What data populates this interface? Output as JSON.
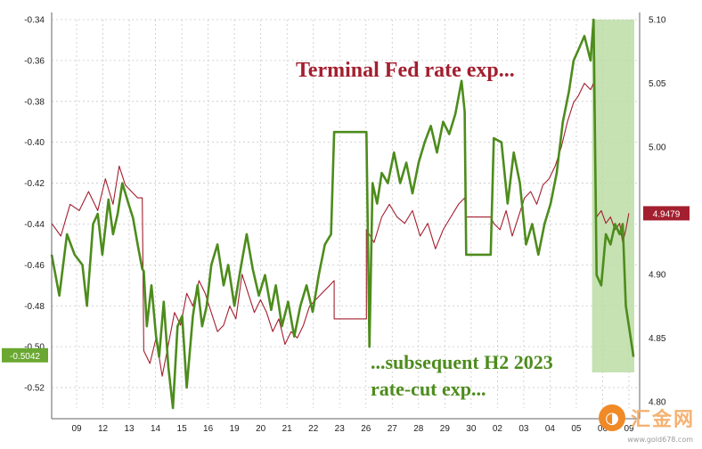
{
  "chart_data": {
    "type": "line",
    "title": "",
    "xlabel": "",
    "ylabel": "",
    "x_tick_labels": [
      "09",
      "12",
      "13",
      "14",
      "15",
      "16",
      "19",
      "20",
      "21",
      "22",
      "23",
      "26",
      "27",
      "28",
      "29",
      "30",
      "02",
      "03",
      "04",
      "05",
      "06",
      "09"
    ],
    "ylim_left": [
      -0.53,
      -0.34
    ],
    "ylim_right": [
      4.795,
      5.1
    ],
    "left_ticks": [
      -0.34,
      -0.36,
      -0.38,
      -0.4,
      -0.42,
      -0.44,
      -0.46,
      -0.48,
      -0.5,
      -0.52
    ],
    "right_ticks": [
      4.8,
      4.85,
      4.9,
      4.95,
      5.0,
      5.05,
      5.1
    ],
    "grid": true,
    "series": [
      {
        "axis": "left",
        "color": "#4d8c1c",
        "points": [
          [
            0,
            -0.455
          ],
          [
            0.5,
            -0.475
          ],
          [
            1,
            -0.445
          ],
          [
            1.5,
            -0.455
          ],
          [
            2,
            -0.46
          ],
          [
            2.3,
            -0.48
          ],
          [
            2.7,
            -0.44
          ],
          [
            3,
            -0.435
          ],
          [
            3.3,
            -0.455
          ],
          [
            3.7,
            -0.428
          ],
          [
            4,
            -0.445
          ],
          [
            4.3,
            -0.435
          ],
          [
            4.6,
            -0.42
          ],
          [
            5,
            -0.43
          ],
          [
            5.3,
            -0.437
          ],
          [
            5.6,
            -0.45
          ],
          [
            5.9,
            -0.462
          ],
          [
            6,
            -0.463
          ],
          [
            6.2,
            -0.49
          ],
          [
            6.5,
            -0.47
          ],
          [
            6.8,
            -0.495
          ],
          [
            7,
            -0.505
          ],
          [
            7.3,
            -0.478
          ],
          [
            7.6,
            -0.51
          ],
          [
            7.9,
            -0.53
          ],
          [
            8.2,
            -0.49
          ],
          [
            8.5,
            -0.485
          ],
          [
            8.8,
            -0.52
          ],
          [
            9.2,
            -0.485
          ],
          [
            9.5,
            -0.47
          ],
          [
            9.8,
            -0.49
          ],
          [
            10.1,
            -0.48
          ],
          [
            10.4,
            -0.46
          ],
          [
            10.8,
            -0.45
          ],
          [
            11.2,
            -0.47
          ],
          [
            11.5,
            -0.46
          ],
          [
            11.9,
            -0.48
          ],
          [
            12.3,
            -0.462
          ],
          [
            12.7,
            -0.445
          ],
          [
            13.1,
            -0.462
          ],
          [
            13.5,
            -0.475
          ],
          [
            13.9,
            -0.465
          ],
          [
            14.3,
            -0.482
          ],
          [
            14.6,
            -0.47
          ],
          [
            15,
            -0.49
          ],
          [
            15.4,
            -0.478
          ],
          [
            15.8,
            -0.495
          ],
          [
            16.2,
            -0.48
          ],
          [
            16.6,
            -0.47
          ],
          [
            17,
            -0.483
          ],
          [
            17.4,
            -0.465
          ],
          [
            17.8,
            -0.45
          ],
          [
            18.2,
            -0.445
          ],
          [
            18.4,
            -0.395
          ],
          [
            20.5,
            -0.395
          ],
          [
            20.7,
            -0.5
          ],
          [
            20.9,
            -0.42
          ],
          [
            21.2,
            -0.43
          ],
          [
            21.5,
            -0.415
          ],
          [
            21.9,
            -0.42
          ],
          [
            22.3,
            -0.405
          ],
          [
            22.7,
            -0.42
          ],
          [
            23.1,
            -0.41
          ],
          [
            23.5,
            -0.425
          ],
          [
            23.9,
            -0.41
          ],
          [
            24.3,
            -0.4
          ],
          [
            24.7,
            -0.392
          ],
          [
            25.1,
            -0.405
          ],
          [
            25.5,
            -0.39
          ],
          [
            25.9,
            -0.396
          ],
          [
            26.3,
            -0.386
          ],
          [
            26.7,
            -0.37
          ],
          [
            26.9,
            -0.385
          ],
          [
            27,
            -0.455
          ],
          [
            28.6,
            -0.455
          ],
          [
            28.8,
            -0.398
          ],
          [
            29.3,
            -0.4
          ],
          [
            29.7,
            -0.43
          ],
          [
            30.1,
            -0.405
          ],
          [
            30.5,
            -0.42
          ],
          [
            30.9,
            -0.45
          ],
          [
            31.3,
            -0.44
          ],
          [
            31.7,
            -0.455
          ],
          [
            32.1,
            -0.44
          ],
          [
            32.5,
            -0.43
          ],
          [
            32.9,
            -0.415
          ],
          [
            33.3,
            -0.39
          ],
          [
            33.7,
            -0.375
          ],
          [
            34,
            -0.36
          ],
          [
            34.3,
            -0.355
          ],
          [
            34.7,
            -0.348
          ],
          [
            35.1,
            -0.36
          ],
          [
            35.3,
            -0.34
          ],
          [
            35.5,
            -0.465
          ],
          [
            35.8,
            -0.47
          ],
          [
            36.1,
            -0.445
          ],
          [
            36.4,
            -0.45
          ],
          [
            36.7,
            -0.44
          ],
          [
            37,
            -0.445
          ],
          [
            37.2,
            -0.44
          ],
          [
            37.4,
            -0.48
          ],
          [
            37.7,
            -0.495
          ],
          [
            37.9,
            -0.505
          ]
        ]
      },
      {
        "axis": "right",
        "color": "#a31f2f",
        "points": [
          [
            0,
            4.94
          ],
          [
            0.6,
            4.93
          ],
          [
            1.2,
            4.955
          ],
          [
            1.8,
            4.95
          ],
          [
            2.4,
            4.965
          ],
          [
            3,
            4.95
          ],
          [
            3.5,
            4.975
          ],
          [
            4,
            4.955
          ],
          [
            4.4,
            4.985
          ],
          [
            4.8,
            4.97
          ],
          [
            5.2,
            4.965
          ],
          [
            5.6,
            4.96
          ],
          [
            5.9,
            4.96
          ],
          [
            6,
            4.84
          ],
          [
            6.4,
            4.83
          ],
          [
            6.8,
            4.85
          ],
          [
            7.2,
            4.82
          ],
          [
            7.6,
            4.845
          ],
          [
            8,
            4.87
          ],
          [
            8.4,
            4.86
          ],
          [
            8.8,
            4.885
          ],
          [
            9.2,
            4.875
          ],
          [
            9.6,
            4.895
          ],
          [
            10,
            4.885
          ],
          [
            10.4,
            4.87
          ],
          [
            10.8,
            4.855
          ],
          [
            11.2,
            4.86
          ],
          [
            11.6,
            4.875
          ],
          [
            12,
            4.865
          ],
          [
            12.4,
            4.9
          ],
          [
            12.8,
            4.885
          ],
          [
            13.2,
            4.87
          ],
          [
            13.6,
            4.88
          ],
          [
            14,
            4.87
          ],
          [
            14.4,
            4.855
          ],
          [
            14.8,
            4.865
          ],
          [
            15.2,
            4.845
          ],
          [
            15.6,
            4.855
          ],
          [
            16,
            4.85
          ],
          [
            16.4,
            4.86
          ],
          [
            16.8,
            4.875
          ],
          [
            17.2,
            4.88
          ],
          [
            17.6,
            4.885
          ],
          [
            18,
            4.89
          ],
          [
            18.4,
            4.895
          ],
          [
            18.4,
            4.865
          ],
          [
            20.5,
            4.865
          ],
          [
            20.5,
            4.935
          ],
          [
            21,
            4.925
          ],
          [
            21.5,
            4.945
          ],
          [
            22,
            4.955
          ],
          [
            22.5,
            4.945
          ],
          [
            23,
            4.94
          ],
          [
            23.5,
            4.95
          ],
          [
            24,
            4.93
          ],
          [
            24.5,
            4.94
          ],
          [
            25,
            4.92
          ],
          [
            25.5,
            4.935
          ],
          [
            26,
            4.945
          ],
          [
            26.5,
            4.955
          ],
          [
            26.9,
            4.96
          ],
          [
            27,
            4.945
          ],
          [
            28.6,
            4.945
          ],
          [
            28.8,
            4.94
          ],
          [
            29.2,
            4.935
          ],
          [
            29.6,
            4.95
          ],
          [
            30,
            4.93
          ],
          [
            30.4,
            4.945
          ],
          [
            30.8,
            4.96
          ],
          [
            31.2,
            4.965
          ],
          [
            31.6,
            4.955
          ],
          [
            32,
            4.97
          ],
          [
            32.4,
            4.975
          ],
          [
            32.8,
            4.985
          ],
          [
            33.2,
            5.0
          ],
          [
            33.6,
            5.02
          ],
          [
            34,
            5.035
          ],
          [
            34.3,
            5.04
          ],
          [
            34.7,
            5.05
          ],
          [
            35.1,
            5.045
          ],
          [
            35.3,
            5.05
          ],
          [
            35.5,
            4.945
          ],
          [
            35.8,
            4.95
          ],
          [
            36.1,
            4.94
          ],
          [
            36.4,
            4.945
          ],
          [
            36.7,
            4.935
          ],
          [
            37,
            4.94
          ],
          [
            37.2,
            4.925
          ],
          [
            37.4,
            4.935
          ],
          [
            37.6,
            4.9479
          ]
        ]
      }
    ],
    "annotations": [
      {
        "text": "Terminal Fed rate exp...",
        "color": "#a31f2f"
      },
      {
        "text": "...subsequent H2 2023",
        "color": "#4d8c1c"
      },
      {
        "text": "rate-cut exp...",
        "color": "#4d8c1c"
      }
    ],
    "last_values": [
      {
        "axis": "left",
        "label": "-0.5042",
        "color": "#6aa832"
      },
      {
        "axis": "right",
        "label": "4.9479",
        "color": "#a31f2f"
      }
    ],
    "highlight": {
      "from_index": 35.2,
      "to_index": 38.3,
      "color": "#bcdca5"
    }
  },
  "watermark": {
    "icon": "gold-app-icon",
    "glyph": "◑",
    "name": "汇金网",
    "url": "www.gold678.com"
  }
}
